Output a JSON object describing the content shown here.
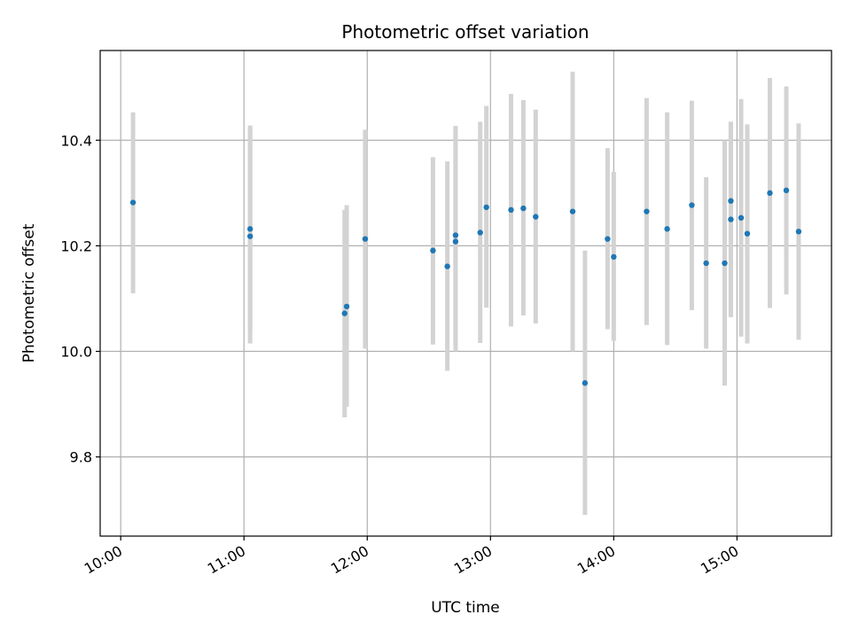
{
  "chart_data": {
    "type": "scatter",
    "title": "Photometric offset variation",
    "xlabel": "UTC time",
    "ylabel": "Photometric offset",
    "x_tick_labels": [
      "10:00",
      "11:00",
      "12:00",
      "13:00",
      "14:00",
      "15:00"
    ],
    "y_tick_labels": [
      "9.8",
      "10.0",
      "10.2",
      "10.4"
    ],
    "xlim": [
      "09:50",
      "15:46"
    ],
    "ylim": [
      9.65,
      10.57
    ],
    "grid": true,
    "error_bar_color": "#d3d3d3",
    "marker_color": "#1f77b4",
    "points": [
      {
        "time": "10:06",
        "value": 10.282,
        "lower": 10.11,
        "upper": 10.453
      },
      {
        "time": "11:03",
        "value": 10.232,
        "lower": 10.04,
        "upper": 10.428
      },
      {
        "time": "11:03",
        "value": 10.218,
        "lower": 10.015,
        "upper": 10.42
      },
      {
        "time": "11:49",
        "value": 10.072,
        "lower": 9.875,
        "upper": 10.268
      },
      {
        "time": "11:50",
        "value": 10.085,
        "lower": 9.895,
        "upper": 10.277
      },
      {
        "time": "11:59",
        "value": 10.213,
        "lower": 10.005,
        "upper": 10.42
      },
      {
        "time": "12:32",
        "value": 10.191,
        "lower": 10.013,
        "upper": 10.368
      },
      {
        "time": "12:39",
        "value": 10.161,
        "lower": 9.963,
        "upper": 10.36
      },
      {
        "time": "12:43",
        "value": 10.22,
        "lower": 10.013,
        "upper": 10.427
      },
      {
        "time": "12:43",
        "value": 10.208,
        "lower": 10.0,
        "upper": 10.418
      },
      {
        "time": "12:55",
        "value": 10.225,
        "lower": 10.016,
        "upper": 10.435
      },
      {
        "time": "12:58",
        "value": 10.273,
        "lower": 10.083,
        "upper": 10.465
      },
      {
        "time": "13:10",
        "value": 10.268,
        "lower": 10.047,
        "upper": 10.488
      },
      {
        "time": "13:16",
        "value": 10.271,
        "lower": 10.068,
        "upper": 10.476
      },
      {
        "time": "13:22",
        "value": 10.255,
        "lower": 10.053,
        "upper": 10.458
      },
      {
        "time": "13:40",
        "value": 10.265,
        "lower": 10.0,
        "upper": 10.53
      },
      {
        "time": "13:46",
        "value": 9.94,
        "lower": 9.69,
        "upper": 10.191
      },
      {
        "time": "13:57",
        "value": 10.213,
        "lower": 10.042,
        "upper": 10.385
      },
      {
        "time": "14:00",
        "value": 10.179,
        "lower": 10.02,
        "upper": 10.34
      },
      {
        "time": "14:16",
        "value": 10.265,
        "lower": 10.05,
        "upper": 10.48
      },
      {
        "time": "14:26",
        "value": 10.232,
        "lower": 10.012,
        "upper": 10.453
      },
      {
        "time": "14:38",
        "value": 10.277,
        "lower": 10.078,
        "upper": 10.475
      },
      {
        "time": "14:45",
        "value": 10.167,
        "lower": 10.005,
        "upper": 10.33
      },
      {
        "time": "14:54",
        "value": 10.167,
        "lower": 9.935,
        "upper": 10.4
      },
      {
        "time": "14:57",
        "value": 10.285,
        "lower": 10.065,
        "upper": 10.435
      },
      {
        "time": "14:57",
        "value": 10.25,
        "lower": 10.065,
        "upper": 10.435
      },
      {
        "time": "15:02",
        "value": 10.253,
        "lower": 10.028,
        "upper": 10.478
      },
      {
        "time": "15:05",
        "value": 10.223,
        "lower": 10.015,
        "upper": 10.43
      },
      {
        "time": "15:16",
        "value": 10.3,
        "lower": 10.082,
        "upper": 10.518
      },
      {
        "time": "15:24",
        "value": 10.305,
        "lower": 10.108,
        "upper": 10.502
      },
      {
        "time": "15:30",
        "value": 10.227,
        "lower": 10.022,
        "upper": 10.432
      }
    ]
  }
}
